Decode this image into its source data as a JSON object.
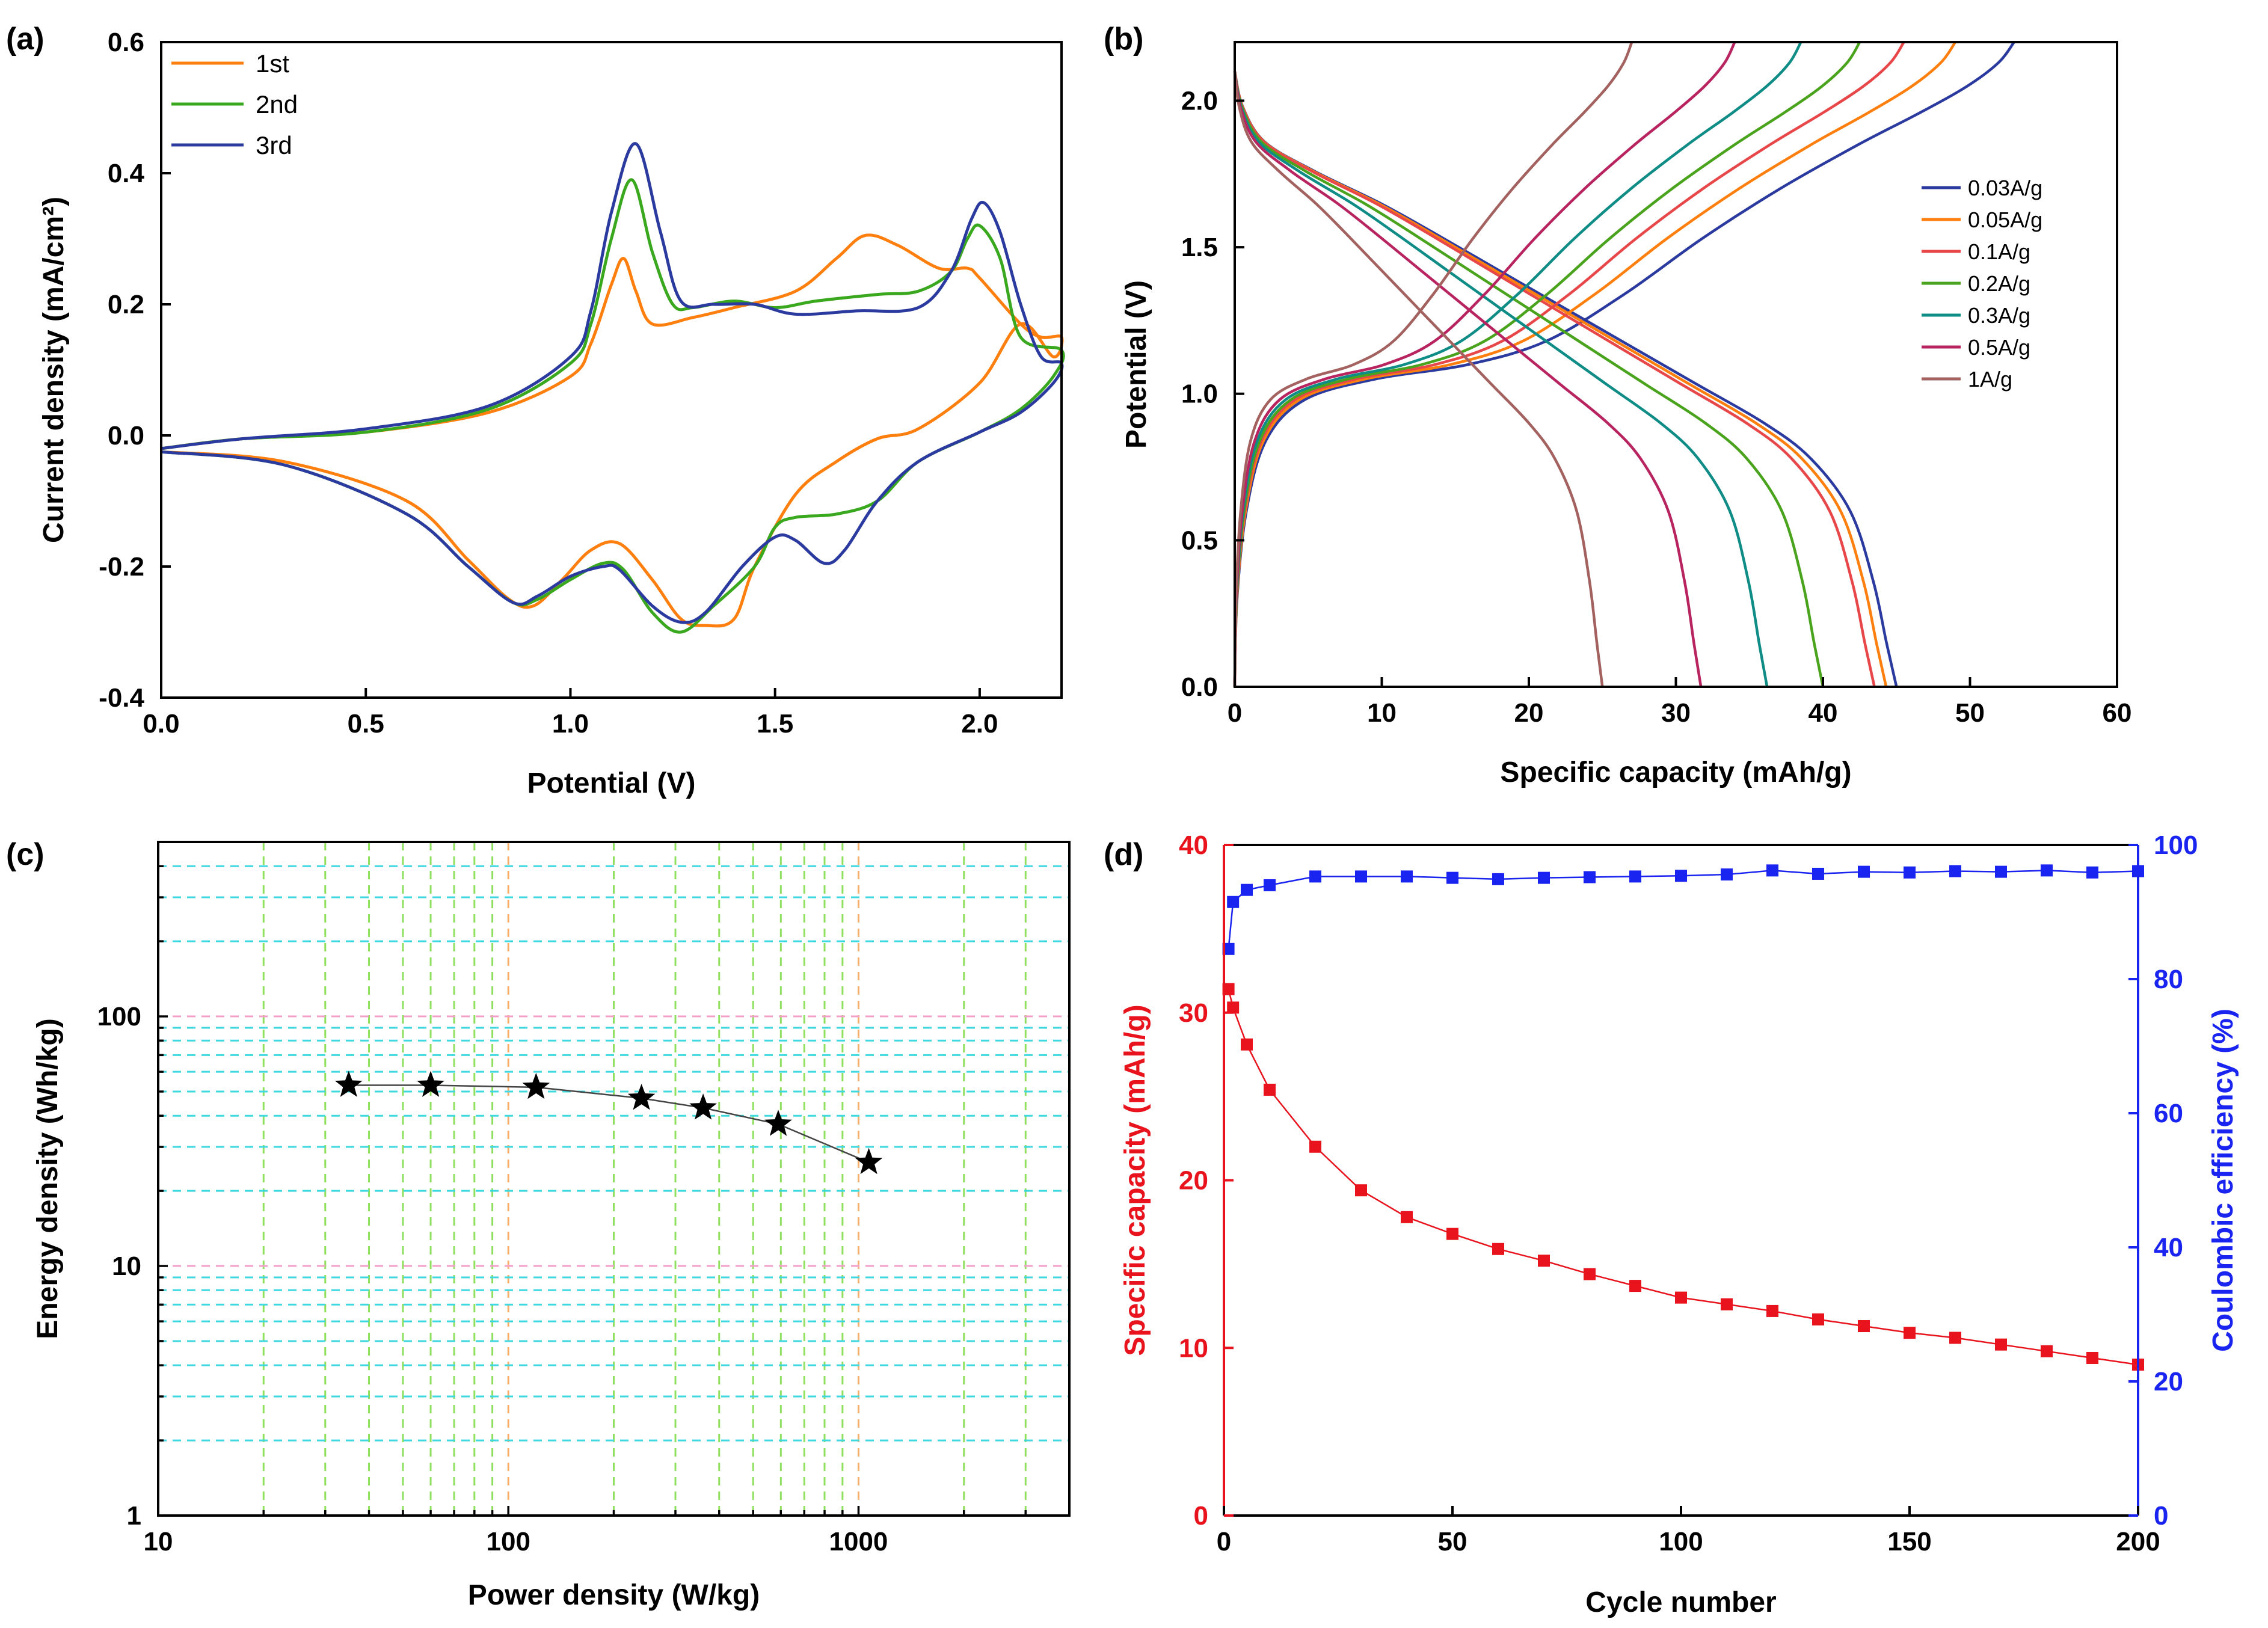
{
  "chart_data": [
    {
      "id": "a",
      "panel_label": "(a)",
      "type": "line",
      "xlabel": "Potential (V)",
      "ylabel": "Current density (mA/cm²)",
      "xlim": [
        0,
        2.2
      ],
      "ylim": [
        -0.4,
        0.6
      ],
      "xticks": [
        0.0,
        0.5,
        1.0,
        1.5,
        2.0
      ],
      "xtick_labels": [
        "0.0",
        "0.5",
        "1.0",
        "1.5",
        "2.0"
      ],
      "yticks": [
        -0.4,
        -0.2,
        0.0,
        0.2,
        0.4,
        0.6
      ],
      "ytick_labels": [
        "-0.4",
        "-0.2",
        "0.0",
        "0.2",
        "0.4",
        "0.6"
      ],
      "legend_position": "top-left",
      "series": [
        {
          "name": "1st",
          "color": "#ff7f0e",
          "points": [
            [
              0.0,
              -0.02
            ],
            [
              0.2,
              -0.005
            ],
            [
              0.5,
              0.005
            ],
            [
              0.8,
              0.035
            ],
            [
              1.0,
              0.09
            ],
            [
              1.05,
              0.14
            ],
            [
              1.1,
              0.23
            ],
            [
              1.13,
              0.27
            ],
            [
              1.16,
              0.22
            ],
            [
              1.2,
              0.17
            ],
            [
              1.3,
              0.18
            ],
            [
              1.4,
              0.195
            ],
            [
              1.55,
              0.22
            ],
            [
              1.65,
              0.27
            ],
            [
              1.72,
              0.305
            ],
            [
              1.8,
              0.29
            ],
            [
              1.9,
              0.255
            ],
            [
              1.97,
              0.255
            ],
            [
              2.0,
              0.24
            ],
            [
              2.1,
              0.17
            ],
            [
              2.15,
              0.15
            ],
            [
              2.2,
              0.15
            ],
            [
              2.18,
              0.12
            ],
            [
              2.1,
              0.17
            ],
            [
              2.0,
              0.08
            ],
            [
              1.85,
              0.01
            ],
            [
              1.75,
              -0.005
            ],
            [
              1.65,
              -0.04
            ],
            [
              1.55,
              -0.09
            ],
            [
              1.45,
              -0.2
            ],
            [
              1.4,
              -0.28
            ],
            [
              1.33,
              -0.29
            ],
            [
              1.27,
              -0.28
            ],
            [
              1.2,
              -0.22
            ],
            [
              1.12,
              -0.165
            ],
            [
              1.05,
              -0.175
            ],
            [
              0.98,
              -0.22
            ],
            [
              0.91,
              -0.26
            ],
            [
              0.85,
              -0.25
            ],
            [
              0.75,
              -0.19
            ],
            [
              0.6,
              -0.1
            ],
            [
              0.3,
              -0.04
            ],
            [
              0.0,
              -0.025
            ]
          ]
        },
        {
          "name": "2nd",
          "color": "#3aa81e",
          "points": [
            [
              0.0,
              -0.02
            ],
            [
              0.2,
              -0.005
            ],
            [
              0.5,
              0.005
            ],
            [
              0.8,
              0.04
            ],
            [
              1.0,
              0.11
            ],
            [
              1.05,
              0.17
            ],
            [
              1.1,
              0.3
            ],
            [
              1.15,
              0.39
            ],
            [
              1.2,
              0.28
            ],
            [
              1.25,
              0.2
            ],
            [
              1.3,
              0.195
            ],
            [
              1.4,
              0.205
            ],
            [
              1.5,
              0.195
            ],
            [
              1.6,
              0.205
            ],
            [
              1.75,
              0.215
            ],
            [
              1.85,
              0.22
            ],
            [
              1.93,
              0.25
            ],
            [
              1.97,
              0.3
            ],
            [
              2.0,
              0.32
            ],
            [
              2.05,
              0.27
            ],
            [
              2.1,
              0.15
            ],
            [
              2.2,
              0.13
            ],
            [
              2.18,
              0.09
            ],
            [
              2.1,
              0.04
            ],
            [
              2.0,
              0.005
            ],
            [
              1.85,
              -0.04
            ],
            [
              1.75,
              -0.1
            ],
            [
              1.65,
              -0.12
            ],
            [
              1.55,
              -0.125
            ],
            [
              1.5,
              -0.14
            ],
            [
              1.45,
              -0.2
            ],
            [
              1.35,
              -0.26
            ],
            [
              1.27,
              -0.3
            ],
            [
              1.2,
              -0.27
            ],
            [
              1.13,
              -0.205
            ],
            [
              1.08,
              -0.195
            ],
            [
              1.0,
              -0.22
            ],
            [
              0.92,
              -0.25
            ],
            [
              0.86,
              -0.255
            ],
            [
              0.75,
              -0.2
            ],
            [
              0.6,
              -0.12
            ],
            [
              0.3,
              -0.045
            ],
            [
              0.0,
              -0.025
            ]
          ]
        },
        {
          "name": "3rd",
          "color": "#2b3a9e",
          "points": [
            [
              0.0,
              -0.02
            ],
            [
              0.2,
              -0.005
            ],
            [
              0.5,
              0.01
            ],
            [
              0.8,
              0.045
            ],
            [
              1.0,
              0.12
            ],
            [
              1.05,
              0.19
            ],
            [
              1.1,
              0.34
            ],
            [
              1.16,
              0.445
            ],
            [
              1.22,
              0.31
            ],
            [
              1.27,
              0.205
            ],
            [
              1.35,
              0.2
            ],
            [
              1.45,
              0.2
            ],
            [
              1.55,
              0.185
            ],
            [
              1.7,
              0.19
            ],
            [
              1.85,
              0.195
            ],
            [
              1.93,
              0.25
            ],
            [
              1.98,
              0.33
            ],
            [
              2.01,
              0.355
            ],
            [
              2.05,
              0.31
            ],
            [
              2.1,
              0.2
            ],
            [
              2.15,
              0.12
            ],
            [
              2.2,
              0.11
            ],
            [
              2.18,
              0.08
            ],
            [
              2.1,
              0.035
            ],
            [
              2.0,
              0.005
            ],
            [
              1.85,
              -0.04
            ],
            [
              1.75,
              -0.1
            ],
            [
              1.67,
              -0.175
            ],
            [
              1.62,
              -0.195
            ],
            [
              1.55,
              -0.16
            ],
            [
              1.5,
              -0.155
            ],
            [
              1.42,
              -0.2
            ],
            [
              1.33,
              -0.27
            ],
            [
              1.27,
              -0.285
            ],
            [
              1.2,
              -0.26
            ],
            [
              1.12,
              -0.205
            ],
            [
              1.08,
              -0.2
            ],
            [
              1.0,
              -0.215
            ],
            [
              0.92,
              -0.245
            ],
            [
              0.86,
              -0.255
            ],
            [
              0.75,
              -0.2
            ],
            [
              0.6,
              -0.12
            ],
            [
              0.3,
              -0.045
            ],
            [
              0.0,
              -0.025
            ]
          ]
        }
      ]
    },
    {
      "id": "b",
      "panel_label": "(b)",
      "type": "line",
      "xlabel": "Specific capacity (mAh/g)",
      "ylabel": "Potential (V)",
      "xlim": [
        0,
        60
      ],
      "ylim": [
        0,
        2.2
      ],
      "xticks": [
        0,
        10,
        20,
        30,
        40,
        50,
        60
      ],
      "xtick_labels": [
        "0",
        "10",
        "20",
        "30",
        "40",
        "50",
        "60"
      ],
      "yticks": [
        0.0,
        0.5,
        1.0,
        1.5,
        2.0
      ],
      "ytick_labels": [
        "0.0",
        "0.5",
        "1.0",
        "1.5",
        "2.0"
      ],
      "legend_position": "right",
      "series": [
        {
          "name": "0.03A/g",
          "color": "#2b3a9e",
          "charge_capacity": 53,
          "discharge_capacity": 45
        },
        {
          "name": "0.05A/g",
          "color": "#ff7f0e",
          "charge_capacity": 49,
          "discharge_capacity": 44.3
        },
        {
          "name": "0.1A/g",
          "color": "#e8474a",
          "charge_capacity": 45.5,
          "discharge_capacity": 43.5
        },
        {
          "name": "0.2A/g",
          "color": "#4aa31d",
          "charge_capacity": 42.5,
          "discharge_capacity": 40
        },
        {
          "name": "0.3A/g",
          "color": "#0e8c85",
          "charge_capacity": 38.5,
          "discharge_capacity": 36.2
        },
        {
          "name": "0.5A/g",
          "color": "#b8245f",
          "charge_capacity": 34,
          "discharge_capacity": 31.7
        },
        {
          "name": "1A/g",
          "color": "#a3625f",
          "charge_capacity": 27,
          "discharge_capacity": 25
        }
      ]
    },
    {
      "id": "c",
      "panel_label": "(c)",
      "type": "scatter",
      "xlabel": "Power density (W/kg)",
      "ylabel": "Energy density (Wh/kg)",
      "xscale": "log",
      "yscale": "log",
      "xlim": [
        10,
        4000
      ],
      "ylim": [
        1,
        500
      ],
      "xticks": [
        10,
        100,
        1000
      ],
      "xtick_labels": [
        "10",
        "100",
        "1000"
      ],
      "yticks": [
        1,
        10,
        100
      ],
      "ytick_labels": [
        "1",
        "10",
        "100"
      ],
      "grid": true,
      "grid_x_color": "#90e060",
      "grid_y_color": "#3fd8e0",
      "grid_decade_color": "#f3a0c8",
      "marker": "star",
      "x": [
        35,
        60,
        120,
        240,
        360,
        590,
        1070
      ],
      "y": [
        53,
        53,
        52,
        47,
        43,
        37,
        26
      ]
    },
    {
      "id": "d",
      "panel_label": "(d)",
      "type": "scatter",
      "xlabel": "Cycle number",
      "ylabel": "Specific capacity (mAh/g)",
      "ylabel_right": "Coulombic efficiency (%)",
      "xlim": [
        0,
        200
      ],
      "ylim": [
        0,
        40
      ],
      "ylim_right": [
        0,
        100
      ],
      "xticks": [
        0,
        50,
        100,
        150,
        200
      ],
      "xtick_labels": [
        "0",
        "50",
        "100",
        "150",
        "200"
      ],
      "yticks": [
        0,
        10,
        20,
        30,
        40
      ],
      "ytick_labels": [
        "0",
        "10",
        "20",
        "30",
        "40"
      ],
      "yticks_right": [
        0,
        20,
        40,
        60,
        80,
        100
      ],
      "ytick_labels_right": [
        "0",
        "20",
        "40",
        "60",
        "80",
        "100"
      ],
      "series": [
        {
          "name": "Specific capacity",
          "axis": "left",
          "color": "#e8131c",
          "x": [
            1,
            2,
            5,
            10,
            20,
            30,
            40,
            50,
            60,
            70,
            80,
            90,
            100,
            110,
            120,
            130,
            140,
            150,
            160,
            170,
            180,
            190,
            200
          ],
          "y": [
            31.4,
            30.3,
            28.1,
            25.4,
            22.0,
            19.4,
            17.8,
            16.8,
            15.9,
            15.2,
            14.4,
            13.7,
            13.0,
            12.6,
            12.2,
            11.7,
            11.3,
            10.9,
            10.6,
            10.2,
            9.8,
            9.4,
            9.0
          ]
        },
        {
          "name": "Coulombic efficiency",
          "axis": "right",
          "color": "#1a24f0",
          "x": [
            1,
            2,
            5,
            10,
            20,
            30,
            40,
            50,
            60,
            70,
            80,
            90,
            100,
            110,
            120,
            130,
            140,
            150,
            160,
            170,
            180,
            190,
            200
          ],
          "y": [
            84.5,
            91.5,
            93.3,
            94.0,
            95.3,
            95.3,
            95.3,
            95.1,
            94.9,
            95.1,
            95.2,
            95.3,
            95.4,
            95.6,
            96.2,
            95.7,
            96.0,
            95.9,
            96.1,
            96.0,
            96.2,
            95.9,
            96.1
          ]
        }
      ]
    }
  ]
}
